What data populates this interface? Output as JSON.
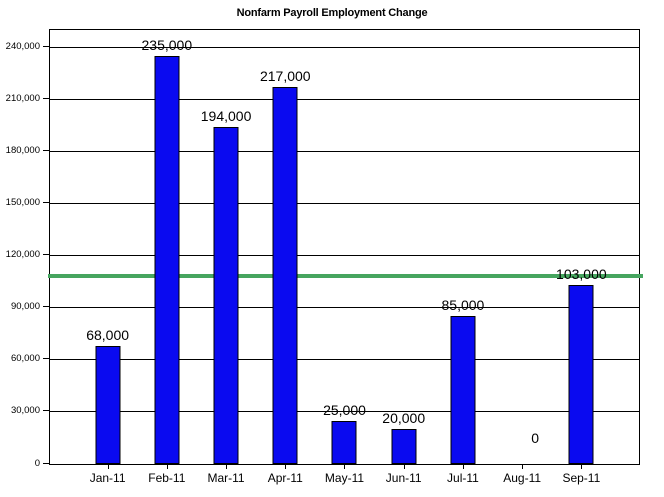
{
  "title": "Nonfarm Payroll Employment Change",
  "chart_data": {
    "type": "bar",
    "title": "Nonfarm Payroll Employment Change",
    "categories": [
      "Jan-11",
      "Feb-11",
      "Mar-11",
      "Apr-11",
      "May-11",
      "Jun-11",
      "Jul-11",
      "Aug-11",
      "Sep-11"
    ],
    "values": [
      68000,
      235000,
      194000,
      217000,
      25000,
      20000,
      85000,
      0,
      103000
    ],
    "data_labels": [
      "68,000",
      "235,000",
      "194,000",
      "217,000",
      "25,000",
      "20,000",
      "85,000",
      "0",
      "103,000"
    ],
    "xlabel": "",
    "ylabel": "",
    "ylim": [
      0,
      250000
    ],
    "ytick_step": 30000,
    "ytick_values": [
      0,
      30000,
      60000,
      90000,
      120000,
      150000,
      180000,
      210000,
      240000
    ],
    "ytick_labels": [
      "0",
      "30,000",
      "60,000",
      "90,000",
      "120,000",
      "150,000",
      "180,000",
      "210,000",
      "240,000"
    ],
    "grid": true,
    "legend": false,
    "bar_color": "#0a0af0",
    "bar_border_color": "#000000",
    "gridline_color": "#000000",
    "reference_line": {
      "value": 108500,
      "color": "#46a55f"
    }
  }
}
